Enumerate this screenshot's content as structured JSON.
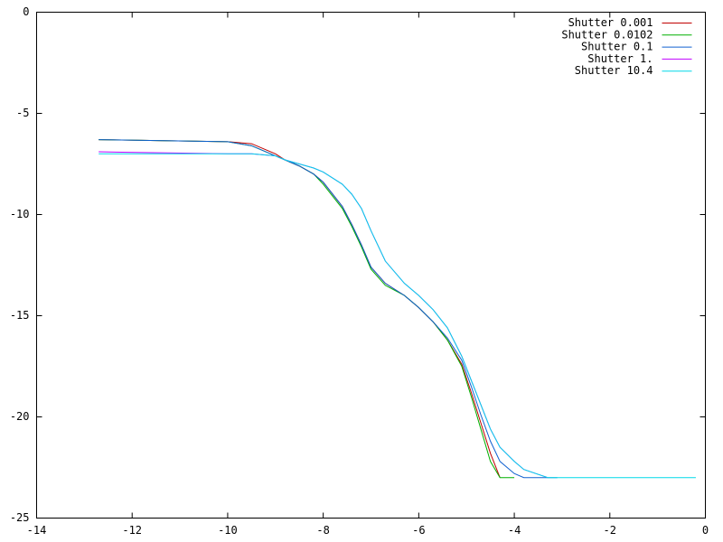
{
  "chart_data": {
    "type": "line",
    "x": [
      -12.7,
      -10,
      -9.5,
      -9,
      -8.8,
      -8.5,
      -8.2,
      -8,
      -7.6,
      -7.4,
      -7.2,
      -7,
      -6.7,
      -6.3,
      -6,
      -5.7,
      -5.4,
      -5.1,
      -4.9,
      -4.7,
      -4.5,
      -4.3,
      -4,
      -3.8,
      -3.3,
      -3.1,
      -0.2
    ],
    "series": [
      {
        "name": "Shutter 0.001",
        "color": "#c00000",
        "values": [
          -6.3,
          -6.4,
          -6.5,
          -7.0,
          -7.3,
          -7.6,
          -8.0,
          -8.4,
          -9.6,
          -10.5,
          -11.5,
          -12.6,
          -13.4,
          -14.0,
          -14.6,
          -15.3,
          -16.2,
          -17.4,
          -18.8,
          -20.3,
          -21.8,
          -23,
          null,
          null,
          null,
          null,
          null
        ]
      },
      {
        "name": "Shutter 0.0102",
        "color": "#00b000",
        "values": [
          -6.3,
          -6.4,
          -6.6,
          -7.1,
          -7.3,
          -7.6,
          -8.0,
          -8.5,
          -9.7,
          -10.6,
          -11.6,
          -12.7,
          -13.5,
          -14.0,
          -14.6,
          -15.3,
          -16.2,
          -17.5,
          -19.0,
          -20.6,
          -22.2,
          -23,
          -23,
          null,
          null,
          null,
          null
        ]
      },
      {
        "name": "Shutter 0.1",
        "color": "#1060d0",
        "values": [
          -6.3,
          -6.4,
          -6.6,
          -7.1,
          -7.3,
          -7.6,
          -8.0,
          -8.4,
          -9.6,
          -10.5,
          -11.5,
          -12.6,
          -13.4,
          -14.0,
          -14.6,
          -15.3,
          -16.1,
          -17.2,
          -18.5,
          -19.9,
          -21.2,
          -22.2,
          -22.8,
          -23,
          -23,
          -23,
          null
        ]
      },
      {
        "name": "Shutter 1.",
        "color": "#c000ff",
        "values": [
          -6.9,
          -7.0,
          -7.0,
          -7.1,
          -7.3,
          -7.5,
          -7.7,
          -7.9,
          -8.5,
          -9.0,
          -9.7,
          -10.8,
          -12.3,
          -13.4,
          -14.0,
          -14.7,
          -15.6,
          -17.0,
          -18.2,
          -19.4,
          -20.6,
          -21.5,
          -22.2,
          -22.6,
          -23,
          null,
          null
        ]
      },
      {
        "name": "Shutter 10.4",
        "color": "#00d8e8",
        "values": [
          -7.0,
          -7.0,
          -7.0,
          -7.1,
          -7.3,
          -7.5,
          -7.7,
          -7.9,
          -8.5,
          -9.0,
          -9.7,
          -10.8,
          -12.3,
          -13.4,
          -14.0,
          -14.7,
          -15.6,
          -17.0,
          -18.2,
          -19.4,
          -20.6,
          -21.5,
          -22.2,
          -22.6,
          -23,
          -23,
          -23
        ]
      }
    ],
    "xlim": [
      -14,
      0
    ],
    "xticks": [
      -14,
      -12,
      -10,
      -8,
      -6,
      -4,
      -2,
      0
    ],
    "ylim": [
      -25,
      0
    ],
    "yticks": [
      -25,
      -20,
      -15,
      -10,
      -5,
      0
    ],
    "legend": "top-right"
  }
}
